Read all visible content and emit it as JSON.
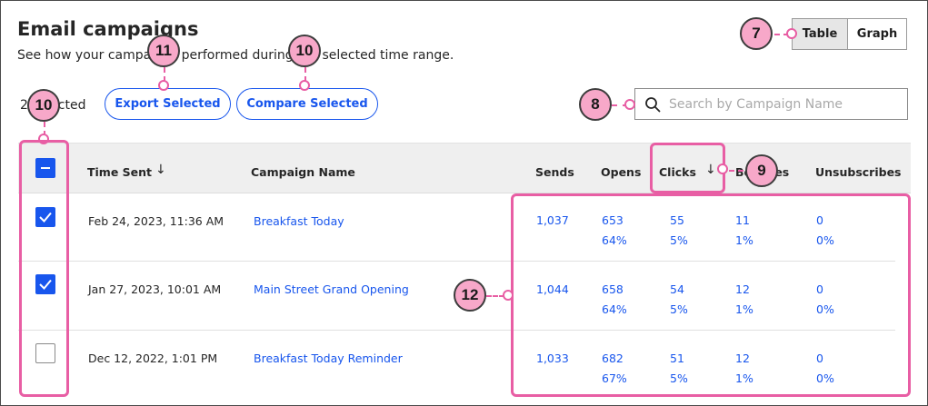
{
  "header": {
    "title": "Email campaigns",
    "subtitle": "See how your campaigns performed during the selected time range."
  },
  "view_toggle": {
    "table_label": "Table",
    "graph_label": "Graph",
    "active": "Table"
  },
  "toolbar": {
    "selected_text": "2 selected",
    "export_label": "Export Selected",
    "compare_label": "Compare Selected"
  },
  "search": {
    "placeholder": "Search by Campaign Name"
  },
  "table": {
    "columns": [
      "Time Sent",
      "Campaign Name",
      "Sends",
      "Opens",
      "Clicks",
      "Bounces",
      "Unsubscribes"
    ],
    "rows": [
      {
        "checked": true,
        "time_sent": "Feb 24, 2023, 11:36 AM",
        "campaign": "Breakfast Today",
        "sends": "1,037",
        "opens": "653",
        "opens_pct": "64%",
        "clicks": "55",
        "clicks_pct": "5%",
        "bounces": "11",
        "bounces_pct": "1%",
        "unsubscribes": "0",
        "unsubscribes_pct": "0%"
      },
      {
        "checked": true,
        "time_sent": "Jan 27, 2023, 10:01 AM",
        "campaign": "Main Street Grand Opening",
        "sends": "1,044",
        "opens": "658",
        "opens_pct": "64%",
        "clicks": "54",
        "clicks_pct": "5%",
        "bounces": "12",
        "bounces_pct": "1%",
        "unsubscribes": "0",
        "unsubscribes_pct": "0%"
      },
      {
        "checked": false,
        "time_sent": "Dec 12, 2022, 1:01 PM",
        "campaign": "Breakfast Today Reminder",
        "sends": "1,033",
        "opens": "682",
        "opens_pct": "67%",
        "clicks": "51",
        "clicks_pct": "5%",
        "bounces": "12",
        "bounces_pct": "1%",
        "unsubscribes": "0",
        "unsubscribes_pct": "0%"
      }
    ]
  },
  "callouts": {
    "toggle": "7",
    "search": "8",
    "clicks_sort": "9",
    "select_all": "10",
    "compare": "10",
    "export": "11",
    "metrics": "12"
  },
  "colors": {
    "accent": "#1856ed",
    "callout": "#e85ea4",
    "badge": "#f7a8c9"
  }
}
